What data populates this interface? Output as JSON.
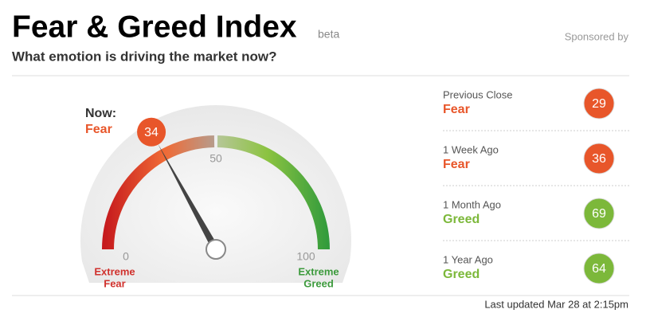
{
  "header": {
    "title": "Fear & Greed Index",
    "badge": "beta",
    "subtitle": "What emotion is driving the market now?",
    "sponsor": "Sponsored by"
  },
  "gauge": {
    "now_label": "Now:",
    "now_rating": "Fear",
    "now_color": "#e8562a",
    "value": 34,
    "min": 0,
    "max": 100,
    "ticks": [
      0,
      50,
      100
    ],
    "low_label": [
      "Extreme",
      "Fear"
    ],
    "low_color": "#d0312d",
    "high_label": [
      "Extreme",
      "Greed"
    ],
    "high_color": "#3c9a3c"
  },
  "history": [
    {
      "label": "Previous Close",
      "rating": "Fear",
      "value": 29,
      "color": "#e8562a"
    },
    {
      "label": "1 Week Ago",
      "rating": "Fear",
      "value": 36,
      "color": "#e8562a"
    },
    {
      "label": "1 Month Ago",
      "rating": "Greed",
      "value": 69,
      "color": "#7cb83a"
    },
    {
      "label": "1 Year Ago",
      "rating": "Greed",
      "value": 64,
      "color": "#7cb83a"
    }
  ],
  "footer": "Last updated Mar 28 at 2:15pm"
}
